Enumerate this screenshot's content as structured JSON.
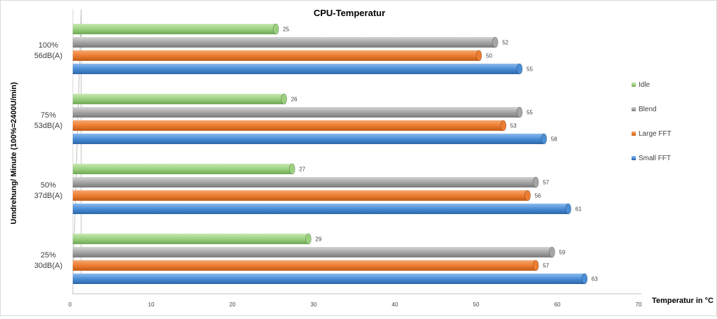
{
  "chart_data": {
    "type": "bar",
    "orientation": "horizontal",
    "title": "CPU-Temperatur",
    "xlabel": "Temperatur in °C",
    "ylabel": "Umdrehung/ Minute (100%=2400U/min)",
    "xlim": [
      0,
      70
    ],
    "xticks": [
      0,
      10,
      20,
      30,
      40,
      50,
      60,
      70
    ],
    "grid": false,
    "legend_position": "right",
    "categories": [
      [
        "100%",
        "56dB(A)"
      ],
      [
        "75%",
        "53dB(A)"
      ],
      [
        "50%",
        "37dB(A)"
      ],
      [
        "25%",
        "30dB(A)"
      ]
    ],
    "series": [
      {
        "name": "Idle",
        "color": "#9bd07f",
        "values": [
          25,
          26,
          27,
          29
        ]
      },
      {
        "name": "Blend",
        "color": "#a5a5a5",
        "values": [
          52,
          55,
          57,
          59
        ]
      },
      {
        "name": "Large FFT",
        "color": "#ed7d31",
        "values": [
          50,
          53,
          56,
          57
        ]
      },
      {
        "name": "Small FFT",
        "color": "#4a8ed6",
        "values": [
          55,
          58,
          61,
          63
        ]
      }
    ],
    "legend_order": [
      "Idle",
      "Blend",
      "Large FFT",
      "Small FFT"
    ]
  }
}
